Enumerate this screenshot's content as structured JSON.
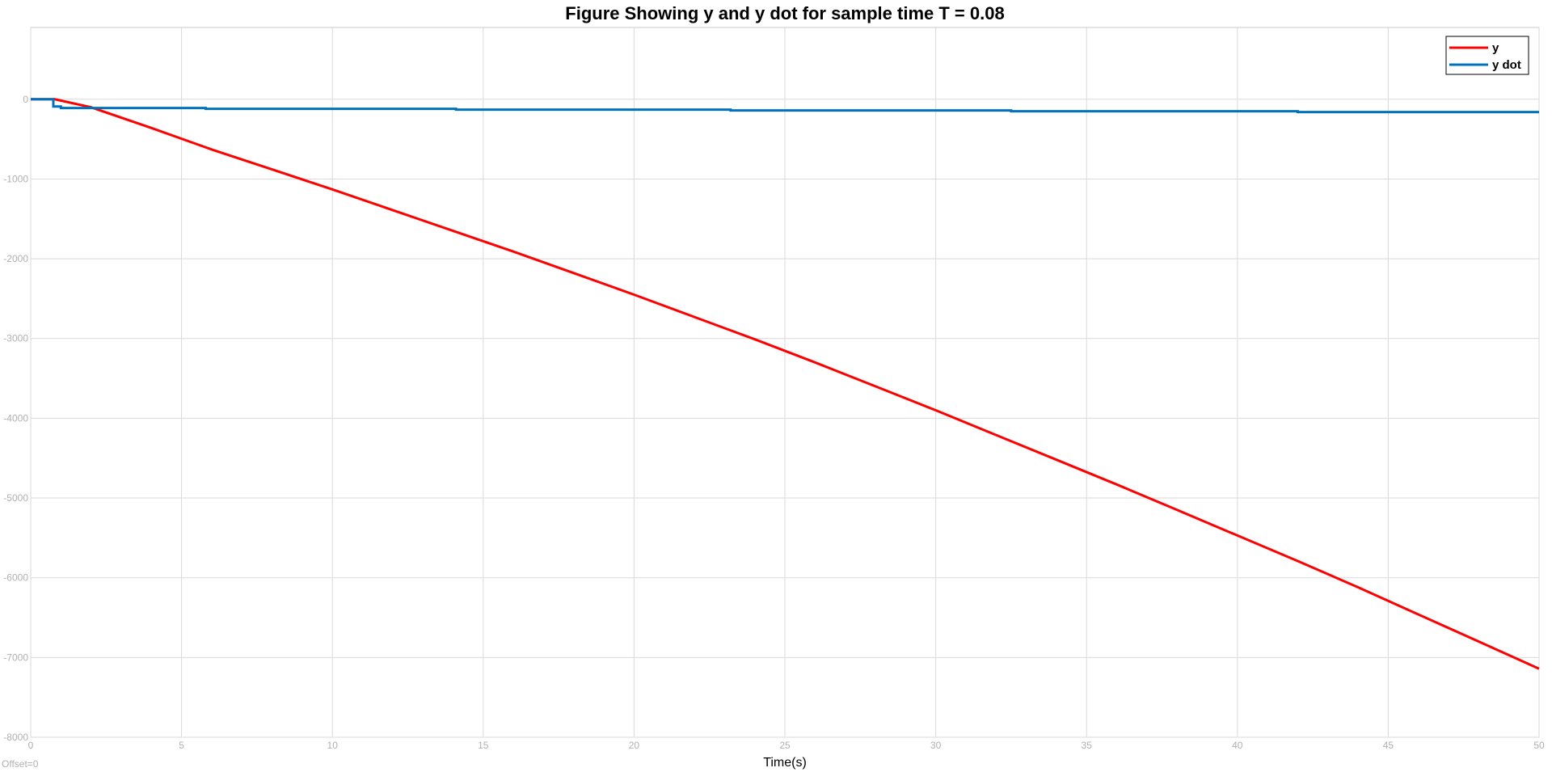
{
  "chart_data": {
    "type": "line",
    "title": "Figure Showing y and y dot for sample time T  = 0.08",
    "xlabel": "Time(s)",
    "ylabel": "",
    "offset_label": "Offset=0",
    "xlim": [
      0,
      50
    ],
    "ylim": [
      -8000,
      900
    ],
    "xticks": [
      0,
      5,
      10,
      15,
      20,
      25,
      30,
      35,
      40,
      45,
      50
    ],
    "yticks": [
      0,
      -1000,
      -2000,
      -3000,
      -4000,
      -5000,
      -6000,
      -7000,
      -8000
    ],
    "xtick_labels": [
      "0",
      "5",
      "10",
      "15",
      "20",
      "25",
      "30",
      "35",
      "40",
      "45",
      "50"
    ],
    "ytick_labels": [
      "0",
      "-1000",
      "-2000",
      "-3000",
      "-4000",
      "-5000",
      "-6000",
      "-7000",
      "-8000"
    ],
    "grid": true,
    "legend_position": "top-right",
    "series": [
      {
        "name": "y",
        "color": "#ff0000",
        "x": [
          0,
          0.8,
          2,
          4,
          6,
          8,
          10,
          12,
          14,
          16,
          18,
          20,
          22,
          24,
          26,
          28,
          30,
          32,
          34,
          36,
          38,
          40,
          42,
          44,
          46,
          48,
          50
        ],
        "y": [
          0,
          0,
          -100,
          -360,
          -630,
          -880,
          -1130,
          -1390,
          -1650,
          -1910,
          -2180,
          -2450,
          -2730,
          -3010,
          -3300,
          -3600,
          -3900,
          -4210,
          -4520,
          -4830,
          -5150,
          -5470,
          -5790,
          -6120,
          -6460,
          -6800,
          -7140
        ]
      },
      {
        "name": "y dot",
        "color": "#0072bd",
        "step": true,
        "x": [
          0,
          0.75,
          0.75,
          1.0,
          5.8,
          14.1,
          23.2,
          32.5,
          42.0,
          50
        ],
        "y": [
          0,
          0,
          -90,
          -110,
          -120,
          -130,
          -140,
          -150,
          -160,
          -160
        ]
      }
    ]
  }
}
